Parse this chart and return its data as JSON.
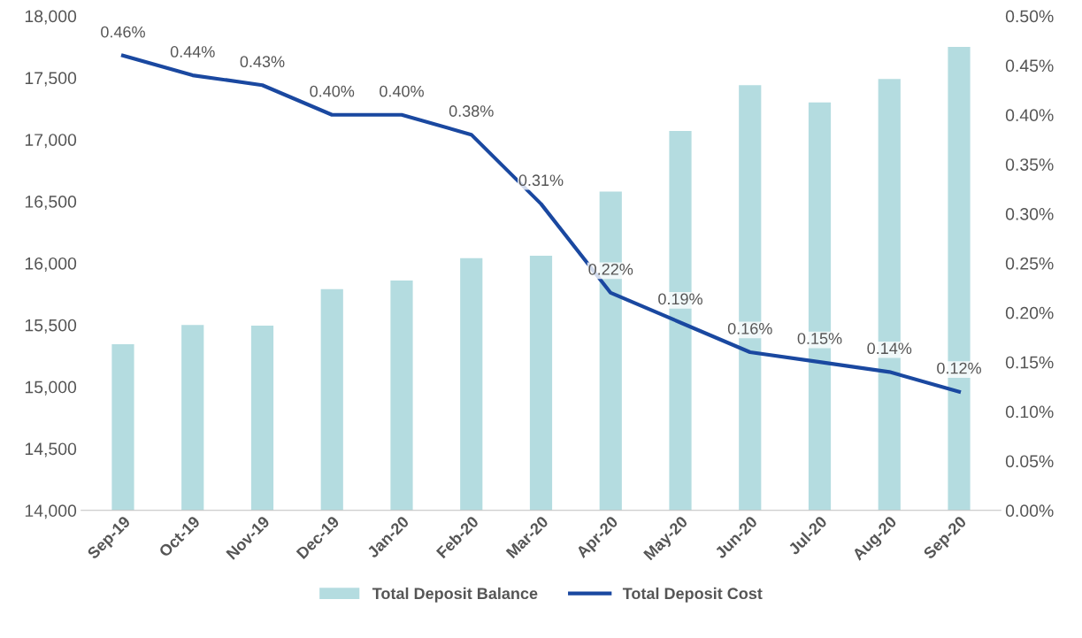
{
  "chart_data": {
    "type": "bar",
    "categories": [
      "Sep-19",
      "Oct-19",
      "Nov-19",
      "Dec-19",
      "Jan-20",
      "Feb-20",
      "Mar-20",
      "Apr-20",
      "May-20",
      "Jun-20",
      "Jul-20",
      "Aug-20",
      "Sep-20"
    ],
    "series": [
      {
        "name": "Total Deposit Balance",
        "color": "#b4dce0",
        "values": [
          15345,
          15500,
          15495,
          15790,
          15860,
          16040,
          16060,
          16580,
          17070,
          17440,
          17300,
          17490,
          17750
        ]
      },
      {
        "name": "Total Deposit Cost",
        "type": "line",
        "axis": "y2",
        "color": "#1a48a0",
        "values": [
          0.46,
          0.44,
          0.43,
          0.4,
          0.4,
          0.38,
          0.31,
          0.22,
          0.19,
          0.16,
          0.15,
          0.14,
          0.12
        ],
        "value_labels": [
          "0.46%",
          "0.44%",
          "0.43%",
          "0.40%",
          "0.40%",
          "0.38%",
          "0.31%",
          "0.22%",
          "0.19%",
          "0.16%",
          "0.15%",
          "0.14%",
          "0.12%"
        ]
      }
    ],
    "ylim": [
      14000,
      18000
    ],
    "yticks": [
      {
        "value": 14000,
        "label": "14,000"
      },
      {
        "value": 14500,
        "label": "14,500"
      },
      {
        "value": 15000,
        "label": "15,000"
      },
      {
        "value": 15500,
        "label": "15,500"
      },
      {
        "value": 16000,
        "label": "16,000"
      },
      {
        "value": 16500,
        "label": "16,500"
      },
      {
        "value": 17000,
        "label": "17,000"
      },
      {
        "value": 17500,
        "label": "17,500"
      },
      {
        "value": 18000,
        "label": "18,000"
      }
    ],
    "y2lim": [
      0,
      0.5
    ],
    "y2ticks": [
      {
        "value": 0,
        "label": "0.00%"
      },
      {
        "value": 0.05,
        "label": "0.05%"
      },
      {
        "value": 0.1,
        "label": "0.10%"
      },
      {
        "value": 0.15,
        "label": "0.15%"
      },
      {
        "value": 0.2,
        "label": "0.20%"
      },
      {
        "value": 0.25,
        "label": "0.25%"
      },
      {
        "value": 0.3,
        "label": "0.30%"
      },
      {
        "value": 0.35,
        "label": "0.35%"
      },
      {
        "value": 0.4,
        "label": "0.40%"
      },
      {
        "value": 0.45,
        "label": "0.45%"
      },
      {
        "value": 0.5,
        "label": "0.50%"
      }
    ],
    "grid": false,
    "legend": "bottom"
  }
}
